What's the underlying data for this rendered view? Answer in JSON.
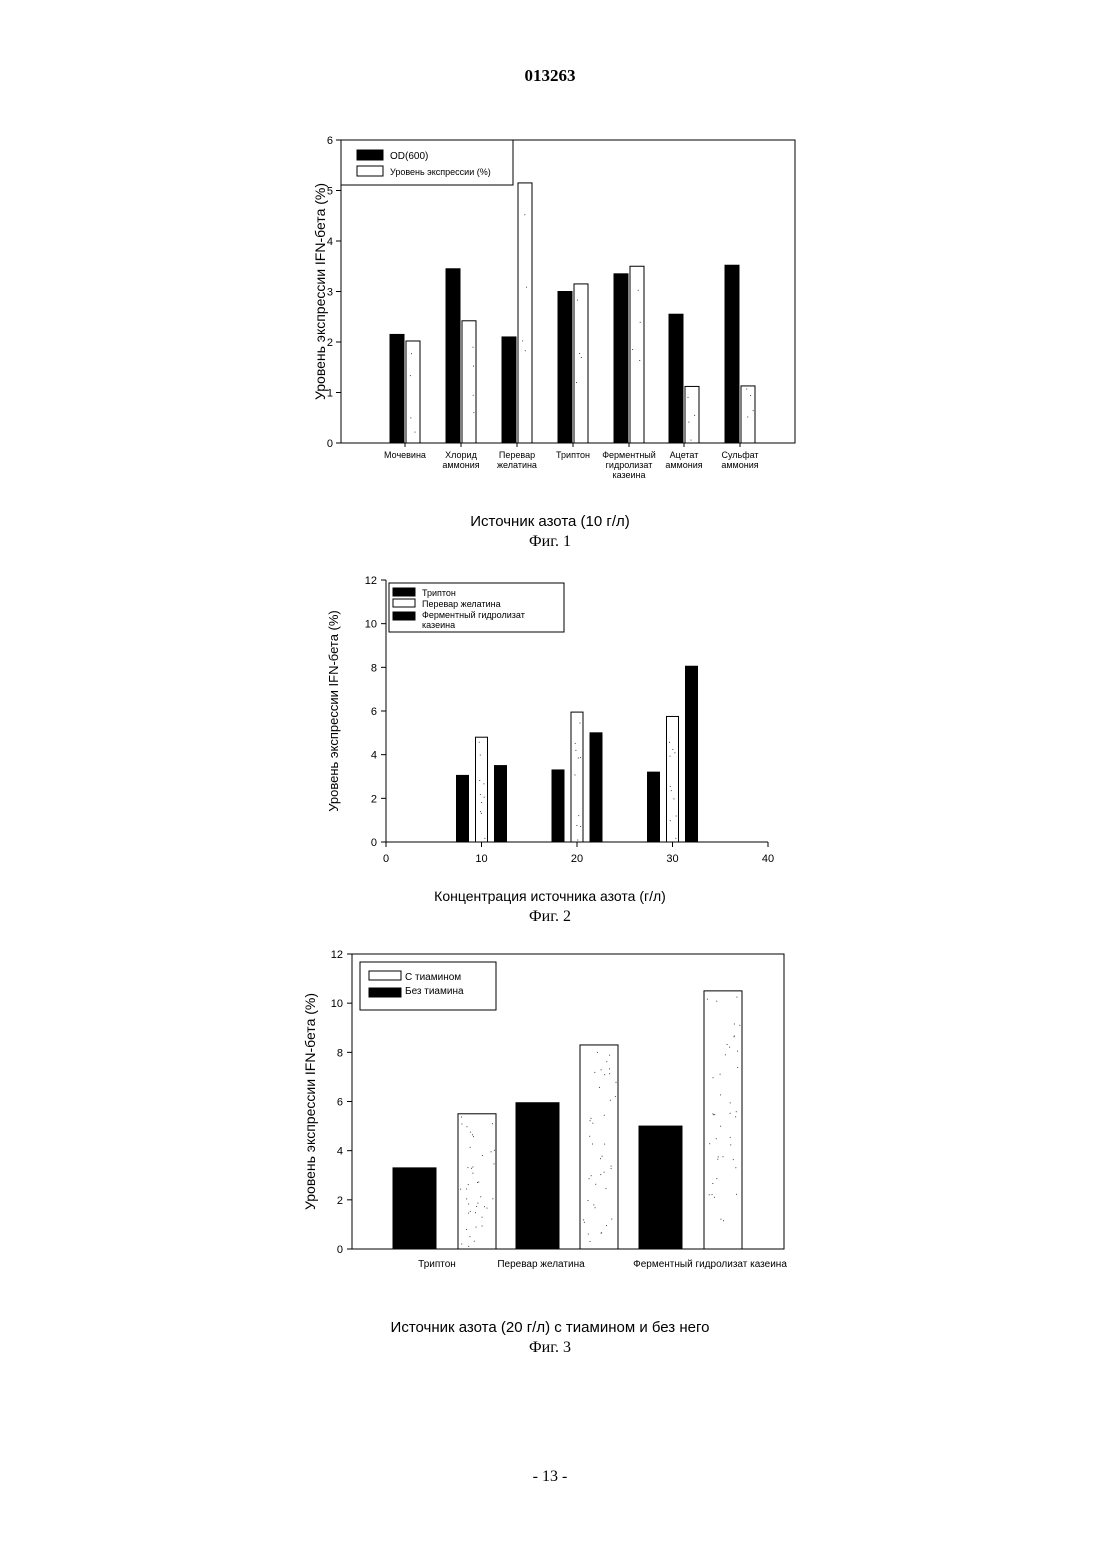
{
  "page": {
    "number_top": "013263",
    "footer": "- 13 -"
  },
  "figures": [
    {
      "xlabel": "Источник азота (10 г/л)",
      "caption": "Фиг. 1"
    },
    {
      "xlabel": "Концентрация источника азота (г/л)",
      "caption": "Фиг. 2"
    },
    {
      "xlabel": "Источник азота (20 г/л) с тиамином и без него",
      "caption": "Фиг. 3"
    }
  ],
  "colors": {
    "dark_bar": "#000000",
    "light_bar": "#ffffff",
    "axis": "#000000"
  },
  "chart_data": [
    {
      "type": "bar",
      "ylabel": "Уровень экспрессии IFN-бета (%)",
      "ylim": [
        0,
        6
      ],
      "yticks": [
        0,
        1,
        2,
        3,
        4,
        5,
        6
      ],
      "legend_position": "top-left",
      "categories": [
        [
          "Мочевина"
        ],
        [
          "Хлорид",
          "аммония"
        ],
        [
          "Перевар",
          "желатина"
        ],
        [
          "Триптон"
        ],
        [
          "Ферментный",
          "гидролизат",
          "казеина"
        ],
        [
          "Ацетат",
          "аммония"
        ],
        [
          "Сульфат",
          "аммония"
        ]
      ],
      "series": [
        {
          "name": "OD(600)",
          "style": "dark",
          "values": [
            2.15,
            3.45,
            2.1,
            3.0,
            3.35,
            2.55,
            3.52
          ]
        },
        {
          "name": "Уровень экспрессии (%)",
          "style": "light",
          "values": [
            2.02,
            2.42,
            5.15,
            3.15,
            3.5,
            1.12,
            1.13
          ]
        }
      ]
    },
    {
      "type": "bar",
      "ylabel": "Уровень экспрессии IFN-бета (%)",
      "ylim": [
        0,
        12
      ],
      "yticks": [
        0,
        2,
        4,
        6,
        8,
        10,
        12
      ],
      "xlim": [
        0,
        40
      ],
      "xticks": [
        0,
        10,
        20,
        30,
        40
      ],
      "legend_position": "top-left",
      "x": [
        10,
        20,
        30
      ],
      "series": [
        {
          "name": "Триптон",
          "style": "dark",
          "values": [
            3.05,
            3.3,
            3.2
          ]
        },
        {
          "name": "Перевар желатина",
          "style": "light",
          "values": [
            4.8,
            5.95,
            5.75
          ]
        },
        {
          "name": "Ферментный гидролизат казеина",
          "style": "dark",
          "values": [
            3.5,
            5.0,
            8.05
          ]
        }
      ]
    },
    {
      "type": "bar",
      "ylabel": "Уровень экспрессии IFN-бета (%)",
      "ylim": [
        0,
        12
      ],
      "yticks": [
        0,
        2,
        4,
        6,
        8,
        10,
        12
      ],
      "legend_position": "top-left",
      "categories": [
        "Триптон",
        "Перевар желатина",
        "Ферментный гидролизат казеина"
      ],
      "series": [
        {
          "name": "С тиамином",
          "style": "light",
          "values": [
            5.5,
            8.3,
            10.5
          ]
        },
        {
          "name": "Без тиамина",
          "style": "dark",
          "values": [
            3.3,
            5.95,
            5.0
          ]
        }
      ]
    }
  ]
}
